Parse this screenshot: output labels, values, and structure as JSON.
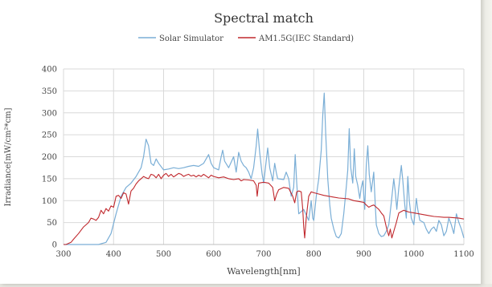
{
  "chart_data": {
    "type": "line",
    "title": "Spectral match",
    "xlabel": "Wavelength[nm]",
    "ylabel": "Irradiance[mW/cm²*cm]",
    "xlim": [
      300,
      1100
    ],
    "ylim": [
      0,
      400
    ],
    "xticks": [
      300,
      400,
      500,
      600,
      700,
      800,
      900,
      1000,
      1100
    ],
    "yticks": [
      0,
      50,
      100,
      150,
      200,
      250,
      300,
      350,
      400
    ],
    "grid": true,
    "legend_position": "top",
    "series": [
      {
        "name": "Solar Simulator",
        "color": "#7aaed6",
        "points": [
          [
            300,
            0
          ],
          [
            370,
            0
          ],
          [
            385,
            5
          ],
          [
            395,
            25
          ],
          [
            405,
            70
          ],
          [
            415,
            110
          ],
          [
            425,
            130
          ],
          [
            435,
            140
          ],
          [
            445,
            155
          ],
          [
            455,
            175
          ],
          [
            460,
            200
          ],
          [
            465,
            240
          ],
          [
            470,
            225
          ],
          [
            475,
            185
          ],
          [
            480,
            180
          ],
          [
            485,
            195
          ],
          [
            490,
            185
          ],
          [
            500,
            170
          ],
          [
            510,
            172
          ],
          [
            520,
            175
          ],
          [
            530,
            173
          ],
          [
            540,
            175
          ],
          [
            550,
            178
          ],
          [
            560,
            180
          ],
          [
            570,
            178
          ],
          [
            580,
            185
          ],
          [
            585,
            195
          ],
          [
            590,
            205
          ],
          [
            595,
            185
          ],
          [
            600,
            175
          ],
          [
            610,
            170
          ],
          [
            615,
            200
          ],
          [
            618,
            215
          ],
          [
            622,
            190
          ],
          [
            630,
            175
          ],
          [
            640,
            200
          ],
          [
            645,
            165
          ],
          [
            650,
            210
          ],
          [
            655,
            190
          ],
          [
            660,
            180
          ],
          [
            665,
            175
          ],
          [
            670,
            165
          ],
          [
            675,
            150
          ],
          [
            680,
            175
          ],
          [
            685,
            225
          ],
          [
            688,
            263
          ],
          [
            692,
            210
          ],
          [
            697,
            160
          ],
          [
            700,
            140
          ],
          [
            705,
            190
          ],
          [
            708,
            220
          ],
          [
            712,
            175
          ],
          [
            718,
            145
          ],
          [
            722,
            185
          ],
          [
            725,
            165
          ],
          [
            728,
            150
          ],
          [
            740,
            148
          ],
          [
            745,
            165
          ],
          [
            750,
            150
          ],
          [
            755,
            110
          ],
          [
            760,
            130
          ],
          [
            763,
            205
          ],
          [
            766,
            140
          ],
          [
            770,
            70
          ],
          [
            775,
            75
          ],
          [
            780,
            80
          ],
          [
            790,
            55
          ],
          [
            795,
            100
          ],
          [
            798,
            60
          ],
          [
            800,
            55
          ],
          [
            805,
            110
          ],
          [
            810,
            150
          ],
          [
            815,
            215
          ],
          [
            818,
            295
          ],
          [
            821,
            345
          ],
          [
            824,
            250
          ],
          [
            828,
            150
          ],
          [
            832,
            90
          ],
          [
            835,
            60
          ],
          [
            840,
            35
          ],
          [
            845,
            18
          ],
          [
            850,
            15
          ],
          [
            855,
            25
          ],
          [
            860,
            70
          ],
          [
            865,
            130
          ],
          [
            868,
            170
          ],
          [
            871,
            264
          ],
          [
            874,
            175
          ],
          [
            878,
            140
          ],
          [
            881,
            218
          ],
          [
            884,
            155
          ],
          [
            888,
            135
          ],
          [
            892,
            105
          ],
          [
            895,
            130
          ],
          [
            898,
            145
          ],
          [
            902,
            80
          ],
          [
            905,
            180
          ],
          [
            908,
            225
          ],
          [
            911,
            160
          ],
          [
            915,
            120
          ],
          [
            920,
            165
          ],
          [
            923,
            90
          ],
          [
            925,
            45
          ],
          [
            930,
            25
          ],
          [
            935,
            18
          ],
          [
            940,
            20
          ],
          [
            945,
            30
          ],
          [
            950,
            45
          ],
          [
            955,
            95
          ],
          [
            960,
            150
          ],
          [
            963,
            120
          ],
          [
            966,
            80
          ],
          [
            970,
            130
          ],
          [
            975,
            180
          ],
          [
            978,
            145
          ],
          [
            982,
            90
          ],
          [
            985,
            60
          ],
          [
            988,
            155
          ],
          [
            991,
            100
          ],
          [
            995,
            60
          ],
          [
            1000,
            45
          ],
          [
            1005,
            105
          ],
          [
            1008,
            80
          ],
          [
            1012,
            55
          ],
          [
            1020,
            50
          ],
          [
            1025,
            35
          ],
          [
            1030,
            25
          ],
          [
            1035,
            35
          ],
          [
            1040,
            40
          ],
          [
            1045,
            30
          ],
          [
            1050,
            55
          ],
          [
            1055,
            45
          ],
          [
            1060,
            20
          ],
          [
            1065,
            30
          ],
          [
            1070,
            60
          ],
          [
            1075,
            45
          ],
          [
            1080,
            25
          ],
          [
            1085,
            70
          ],
          [
            1090,
            50
          ],
          [
            1095,
            35
          ],
          [
            1100,
            15
          ]
        ]
      },
      {
        "name": "AM1.5G(IEC Standard)",
        "color": "#c0282d",
        "points": [
          [
            300,
            0
          ],
          [
            305,
            0
          ],
          [
            315,
            5
          ],
          [
            320,
            12
          ],
          [
            330,
            25
          ],
          [
            340,
            40
          ],
          [
            350,
            50
          ],
          [
            355,
            60
          ],
          [
            360,
            58
          ],
          [
            365,
            55
          ],
          [
            370,
            62
          ],
          [
            375,
            78
          ],
          [
            380,
            70
          ],
          [
            385,
            82
          ],
          [
            390,
            76
          ],
          [
            395,
            88
          ],
          [
            400,
            85
          ],
          [
            405,
            110
          ],
          [
            410,
            112
          ],
          [
            415,
            105
          ],
          [
            420,
            118
          ],
          [
            425,
            115
          ],
          [
            430,
            92
          ],
          [
            435,
            122
          ],
          [
            440,
            128
          ],
          [
            445,
            138
          ],
          [
            450,
            145
          ],
          [
            455,
            150
          ],
          [
            460,
            155
          ],
          [
            465,
            152
          ],
          [
            470,
            150
          ],
          [
            475,
            160
          ],
          [
            480,
            158
          ],
          [
            485,
            152
          ],
          [
            490,
            160
          ],
          [
            495,
            150
          ],
          [
            500,
            158
          ],
          [
            505,
            162
          ],
          [
            510,
            155
          ],
          [
            515,
            160
          ],
          [
            520,
            154
          ],
          [
            525,
            158
          ],
          [
            530,
            162
          ],
          [
            535,
            160
          ],
          [
            540,
            155
          ],
          [
            545,
            158
          ],
          [
            550,
            160
          ],
          [
            555,
            156
          ],
          [
            560,
            158
          ],
          [
            565,
            154
          ],
          [
            570,
            158
          ],
          [
            575,
            155
          ],
          [
            580,
            160
          ],
          [
            585,
            156
          ],
          [
            590,
            152
          ],
          [
            595,
            158
          ],
          [
            600,
            155
          ],
          [
            610,
            152
          ],
          [
            620,
            154
          ],
          [
            630,
            150
          ],
          [
            640,
            148
          ],
          [
            650,
            150
          ],
          [
            655,
            145
          ],
          [
            660,
            148
          ],
          [
            670,
            147
          ],
          [
            680,
            145
          ],
          [
            685,
            135
          ],
          [
            687,
            110
          ],
          [
            690,
            140
          ],
          [
            700,
            142
          ],
          [
            710,
            140
          ],
          [
            718,
            130
          ],
          [
            722,
            100
          ],
          [
            726,
            115
          ],
          [
            730,
            125
          ],
          [
            740,
            130
          ],
          [
            750,
            128
          ],
          [
            758,
            110
          ],
          [
            762,
            95
          ],
          [
            766,
            120
          ],
          [
            770,
            122
          ],
          [
            775,
            120
          ],
          [
            778,
            80
          ],
          [
            780,
            40
          ],
          [
            782,
            15
          ],
          [
            785,
            60
          ],
          [
            790,
            110
          ],
          [
            795,
            120
          ],
          [
            800,
            118
          ],
          [
            810,
            115
          ],
          [
            820,
            112
          ],
          [
            830,
            110
          ],
          [
            840,
            108
          ],
          [
            850,
            106
          ],
          [
            860,
            105
          ],
          [
            870,
            104
          ],
          [
            880,
            100
          ],
          [
            890,
            98
          ],
          [
            900,
            96
          ],
          [
            905,
            90
          ],
          [
            910,
            85
          ],
          [
            915,
            88
          ],
          [
            920,
            90
          ],
          [
            925,
            85
          ],
          [
            930,
            80
          ],
          [
            935,
            72
          ],
          [
            940,
            65
          ],
          [
            945,
            40
          ],
          [
            950,
            20
          ],
          [
            953,
            35
          ],
          [
            956,
            15
          ],
          [
            960,
            30
          ],
          [
            965,
            50
          ],
          [
            970,
            72
          ],
          [
            975,
            75
          ],
          [
            980,
            78
          ],
          [
            990,
            74
          ],
          [
            1000,
            72
          ],
          [
            1010,
            70
          ],
          [
            1020,
            68
          ],
          [
            1030,
            66
          ],
          [
            1040,
            64
          ],
          [
            1050,
            63
          ],
          [
            1060,
            62
          ],
          [
            1070,
            62
          ],
          [
            1080,
            61
          ],
          [
            1090,
            60
          ],
          [
            1100,
            58
          ]
        ]
      }
    ]
  }
}
